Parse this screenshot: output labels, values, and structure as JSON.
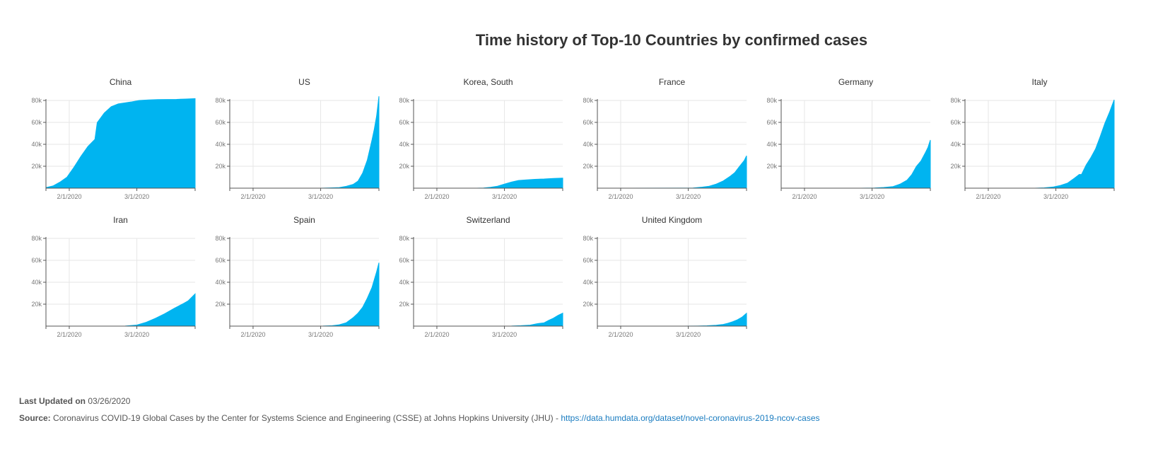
{
  "page_title": "Time history of Top-10 Countries by confirmed cases",
  "footer": {
    "updated_label": "Last Updated on",
    "updated_value": "03/26/2020",
    "source_label": "Source:",
    "source_text": "Coronavirus COVID-19 Global Cases by the Center for Systems Science and Engineering (CSSE) at Johns Hopkins University (JHU) -",
    "source_link": "https://data.humdata.org/dataset/novel-coronavirus-2019-ncov-cases"
  },
  "colors": {
    "fill": "#00b4f0",
    "link": "#1a7cc0"
  },
  "chart_data": [
    {
      "type": "area",
      "title": "China",
      "x_domain": [
        "2020-01-22",
        "2020-03-26"
      ],
      "ylim": [
        0,
        80000
      ],
      "yticks": [
        20000,
        40000,
        60000,
        80000
      ],
      "ytick_labels": [
        "20k",
        "40k",
        "60k",
        "80k"
      ],
      "xticks": [
        "2020-02-01",
        "2020-03-01"
      ],
      "xtick_labels": [
        "2/1/2020",
        "3/1/2020"
      ],
      "x": [
        "2020-01-22",
        "2020-01-25",
        "2020-01-28",
        "2020-01-31",
        "2020-02-03",
        "2020-02-06",
        "2020-02-09",
        "2020-02-12",
        "2020-02-13",
        "2020-02-16",
        "2020-02-19",
        "2020-02-22",
        "2020-02-25",
        "2020-02-28",
        "2020-03-02",
        "2020-03-06",
        "2020-03-10",
        "2020-03-14",
        "2020-03-18",
        "2020-03-22",
        "2020-03-26"
      ],
      "y": [
        550,
        2000,
        5500,
        10000,
        19000,
        29000,
        38000,
        44500,
        59800,
        68500,
        74300,
        76900,
        77800,
        78800,
        80000,
        80500,
        80800,
        80900,
        81000,
        81300,
        81700
      ]
    },
    {
      "type": "area",
      "title": "US",
      "x_domain": [
        "2020-01-22",
        "2020-03-26"
      ],
      "ylim": [
        0,
        80000
      ],
      "yticks": [
        20000,
        40000,
        60000,
        80000
      ],
      "ytick_labels": [
        "20k",
        "40k",
        "60k",
        "80k"
      ],
      "xticks": [
        "2020-02-01",
        "2020-03-01"
      ],
      "xtick_labels": [
        "2/1/2020",
        "3/1/2020"
      ],
      "x": [
        "2020-01-22",
        "2020-02-15",
        "2020-03-01",
        "2020-03-05",
        "2020-03-09",
        "2020-03-12",
        "2020-03-15",
        "2020-03-17",
        "2020-03-19",
        "2020-03-21",
        "2020-03-23",
        "2020-03-24",
        "2020-03-25",
        "2020-03-26"
      ],
      "y": [
        1,
        15,
        30,
        230,
        600,
        1700,
        3500,
        6400,
        13700,
        25500,
        43700,
        53700,
        65800,
        83800
      ]
    },
    {
      "type": "area",
      "title": "Korea, South",
      "x_domain": [
        "2020-01-22",
        "2020-03-26"
      ],
      "ylim": [
        0,
        80000
      ],
      "yticks": [
        20000,
        40000,
        60000,
        80000
      ],
      "ytick_labels": [
        "20k",
        "40k",
        "60k",
        "80k"
      ],
      "xticks": [
        "2020-02-01",
        "2020-03-01"
      ],
      "xtick_labels": [
        "2/1/2020",
        "3/1/2020"
      ],
      "x": [
        "2020-01-22",
        "2020-02-18",
        "2020-02-21",
        "2020-02-24",
        "2020-02-27",
        "2020-03-01",
        "2020-03-04",
        "2020-03-07",
        "2020-03-10",
        "2020-03-14",
        "2020-03-18",
        "2020-03-22",
        "2020-03-26"
      ],
      "y": [
        1,
        31,
        200,
        830,
        1770,
        3700,
        5600,
        7000,
        7500,
        8100,
        8400,
        8900,
        9200
      ]
    },
    {
      "type": "area",
      "title": "France",
      "x_domain": [
        "2020-01-22",
        "2020-03-26"
      ],
      "ylim": [
        0,
        80000
      ],
      "yticks": [
        20000,
        40000,
        60000,
        80000
      ],
      "ytick_labels": [
        "20k",
        "40k",
        "60k",
        "80k"
      ],
      "xticks": [
        "2020-02-01",
        "2020-03-01"
      ],
      "xtick_labels": [
        "2/1/2020",
        "3/1/2020"
      ],
      "x": [
        "2020-01-22",
        "2020-02-27",
        "2020-03-03",
        "2020-03-07",
        "2020-03-10",
        "2020-03-13",
        "2020-03-16",
        "2020-03-19",
        "2020-03-21",
        "2020-03-23",
        "2020-03-25",
        "2020-03-26"
      ],
      "y": [
        3,
        57,
        200,
        950,
        1800,
        3700,
        6600,
        10900,
        14300,
        19900,
        25200,
        29500
      ]
    },
    {
      "type": "area",
      "title": "Germany",
      "x_domain": [
        "2020-01-22",
        "2020-03-26"
      ],
      "ylim": [
        0,
        80000
      ],
      "yticks": [
        20000,
        40000,
        60000,
        80000
      ],
      "ytick_labels": [
        "20k",
        "40k",
        "60k",
        "80k"
      ],
      "xticks": [
        "2020-02-01",
        "2020-03-01"
      ],
      "xtick_labels": [
        "2/1/2020",
        "3/1/2020"
      ],
      "x": [
        "2020-01-22",
        "2020-02-25",
        "2020-03-02",
        "2020-03-06",
        "2020-03-10",
        "2020-03-13",
        "2020-03-16",
        "2020-03-18",
        "2020-03-20",
        "2020-03-22",
        "2020-03-24",
        "2020-03-25",
        "2020-03-26"
      ],
      "y": [
        1,
        16,
        160,
        670,
        1460,
        3700,
        7300,
        12300,
        19800,
        24900,
        32900,
        37300,
        43900
      ]
    },
    {
      "type": "area",
      "title": "Italy",
      "x_domain": [
        "2020-01-22",
        "2020-03-26"
      ],
      "ylim": [
        0,
        80000
      ],
      "yticks": [
        20000,
        40000,
        60000,
        80000
      ],
      "ytick_labels": [
        "20k",
        "40k",
        "60k",
        "80k"
      ],
      "xticks": [
        "2020-02-01",
        "2020-03-01"
      ],
      "xtick_labels": [
        "2/1/2020",
        "3/1/2020"
      ],
      "x": [
        "2020-01-22",
        "2020-02-21",
        "2020-02-25",
        "2020-02-29",
        "2020-03-03",
        "2020-03-06",
        "2020-03-09",
        "2020-03-11",
        "2020-03-12",
        "2020-03-14",
        "2020-03-16",
        "2020-03-18",
        "2020-03-20",
        "2020-03-22",
        "2020-03-24",
        "2020-03-26"
      ],
      "y": [
        1,
        20,
        320,
        1130,
        2500,
        4600,
        9200,
        12500,
        12500,
        21200,
        27900,
        35700,
        47000,
        59100,
        69200,
        80600
      ]
    },
    {
      "type": "area",
      "title": "Iran",
      "x_domain": [
        "2020-01-22",
        "2020-03-26"
      ],
      "ylim": [
        0,
        80000
      ],
      "yticks": [
        20000,
        40000,
        60000,
        80000
      ],
      "ytick_labels": [
        "20k",
        "40k",
        "60k",
        "80k"
      ],
      "xticks": [
        "2020-02-01",
        "2020-03-01"
      ],
      "xtick_labels": [
        "2/1/2020",
        "3/1/2020"
      ],
      "x": [
        "2020-01-22",
        "2020-02-19",
        "2020-02-25",
        "2020-03-01",
        "2020-03-05",
        "2020-03-09",
        "2020-03-13",
        "2020-03-17",
        "2020-03-21",
        "2020-03-23",
        "2020-03-26"
      ],
      "y": [
        1,
        2,
        95,
        980,
        3500,
        7100,
        11300,
        16200,
        20600,
        23000,
        29400
      ]
    },
    {
      "type": "area",
      "title": "Spain",
      "x_domain": [
        "2020-01-22",
        "2020-03-26"
      ],
      "ylim": [
        0,
        80000
      ],
      "yticks": [
        20000,
        40000,
        60000,
        80000
      ],
      "ytick_labels": [
        "20k",
        "40k",
        "60k",
        "80k"
      ],
      "xticks": [
        "2020-02-01",
        "2020-03-01"
      ],
      "xtick_labels": [
        "2/1/2020",
        "3/1/2020"
      ],
      "x": [
        "2020-01-22",
        "2020-02-25",
        "2020-03-02",
        "2020-03-06",
        "2020-03-09",
        "2020-03-12",
        "2020-03-15",
        "2020-03-17",
        "2020-03-19",
        "2020-03-21",
        "2020-03-23",
        "2020-03-25",
        "2020-03-26"
      ],
      "y": [
        1,
        6,
        120,
        400,
        1200,
        3100,
        7800,
        11800,
        17100,
        25400,
        35100,
        49500,
        57800
      ]
    },
    {
      "type": "area",
      "title": "Switzerland",
      "x_domain": [
        "2020-01-22",
        "2020-03-26"
      ],
      "ylim": [
        0,
        80000
      ],
      "yticks": [
        20000,
        40000,
        60000,
        80000
      ],
      "ytick_labels": [
        "20k",
        "40k",
        "60k",
        "80k"
      ],
      "xticks": [
        "2020-02-01",
        "2020-03-01"
      ],
      "xtick_labels": [
        "2/1/2020",
        "3/1/2020"
      ],
      "x": [
        "2020-01-22",
        "2020-02-25",
        "2020-03-04",
        "2020-03-08",
        "2020-03-12",
        "2020-03-15",
        "2020-03-18",
        "2020-03-20",
        "2020-03-22",
        "2020-03-24",
        "2020-03-26"
      ],
      "y": [
        1,
        1,
        90,
        370,
        860,
        2200,
        3000,
        5300,
        7200,
        9800,
        11800
      ]
    },
    {
      "type": "area",
      "title": "United Kingdom",
      "x_domain": [
        "2020-01-22",
        "2020-03-26"
      ],
      "ylim": [
        0,
        80000
      ],
      "yticks": [
        20000,
        40000,
        60000,
        80000
      ],
      "ytick_labels": [
        "20k",
        "40k",
        "60k",
        "80k"
      ],
      "xticks": [
        "2020-02-01",
        "2020-03-01"
      ],
      "xtick_labels": [
        "2/1/2020",
        "3/1/2020"
      ],
      "x": [
        "2020-01-22",
        "2020-02-28",
        "2020-03-05",
        "2020-03-09",
        "2020-03-13",
        "2020-03-16",
        "2020-03-18",
        "2020-03-20",
        "2020-03-22",
        "2020-03-24",
        "2020-03-26"
      ],
      "y": [
        1,
        20,
        120,
        320,
        800,
        1550,
        2600,
        4000,
        5700,
        8100,
        11700
      ]
    }
  ]
}
